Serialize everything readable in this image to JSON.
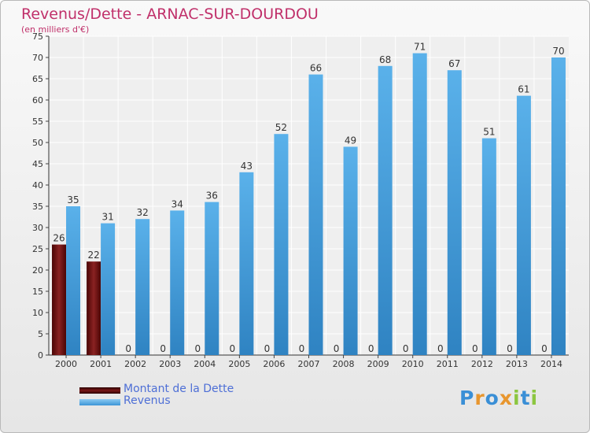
{
  "title": "Revenus/Dette - ARNAC-SUR-DOURDOU",
  "subtitle": "(en milliers d'€)",
  "legend": [
    {
      "label": "Montant de la Dette",
      "color": "#6b1010"
    },
    {
      "label": "Revenus",
      "color": "#4aa3e0"
    }
  ],
  "logo": {
    "letters": [
      "P",
      "r",
      "o",
      "x",
      "i",
      "t",
      "i"
    ],
    "colors": [
      "#3a8fd6",
      "#e8962e",
      "#3a8fd6",
      "#e8962e",
      "#8cc640",
      "#3a8fd6",
      "#8cc640"
    ]
  },
  "chart_data": {
    "type": "bar",
    "categories": [
      "2000",
      "2001",
      "2002",
      "2003",
      "2004",
      "2005",
      "2006",
      "2007",
      "2008",
      "2009",
      "2010",
      "2011",
      "2012",
      "2013",
      "2014"
    ],
    "series": [
      {
        "name": "Montant de la Dette",
        "color": "#6b1010",
        "values": [
          26,
          22,
          0,
          0,
          0,
          0,
          0,
          0,
          0,
          0,
          0,
          0,
          0,
          0,
          0
        ]
      },
      {
        "name": "Revenus",
        "color": "#4aa3e0",
        "values": [
          35,
          31,
          32,
          34,
          36,
          43,
          52,
          66,
          49,
          68,
          71,
          67,
          51,
          61,
          70
        ]
      }
    ],
    "ylim": [
      0,
      75
    ],
    "yticks": [
      0,
      5,
      10,
      15,
      20,
      25,
      30,
      35,
      40,
      45,
      50,
      55,
      60,
      65,
      70,
      75
    ],
    "grid": true,
    "xlabel": "",
    "ylabel": ""
  }
}
